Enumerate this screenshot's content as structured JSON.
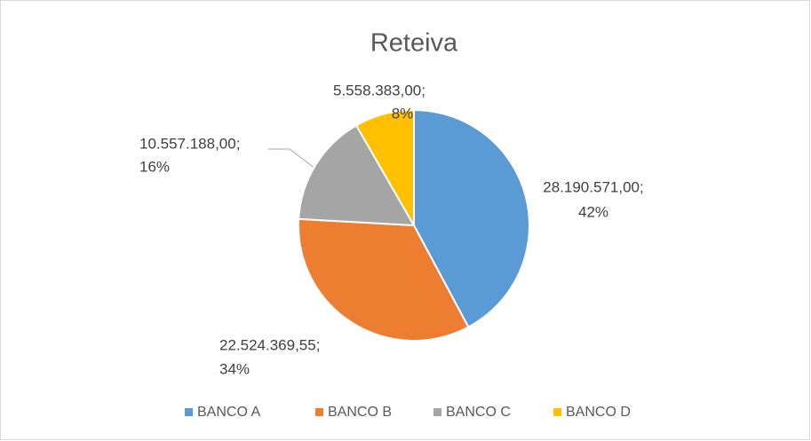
{
  "chart_data": {
    "type": "pie",
    "title": "Reteiva",
    "categories": [
      "BANCO A",
      "BANCO B",
      "BANCO C",
      "BANCO D"
    ],
    "values": [
      28190571.0,
      22524369.55,
      10557188.0,
      5558383.0
    ],
    "value_labels": [
      "28.190.571,00;",
      "22.524.369,55;",
      "10.557.188,00;",
      "5.558.383,00;"
    ],
    "percentages": [
      42,
      34,
      16,
      8
    ],
    "percent_labels": [
      "42%",
      "34%",
      "16%",
      "8%"
    ],
    "colors": [
      "#5b9bd5",
      "#ed7d31",
      "#a5a5a5",
      "#ffc000"
    ],
    "legend": "bottom"
  }
}
